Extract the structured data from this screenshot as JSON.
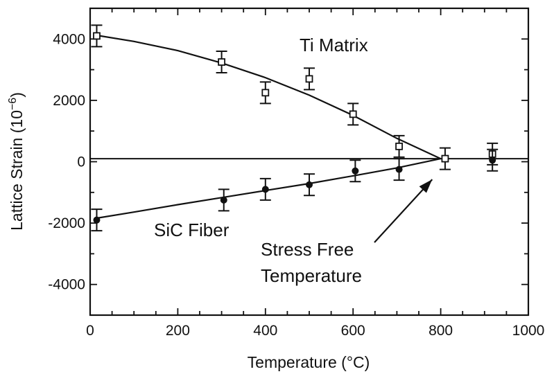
{
  "chart_data": {
    "type": "scatter",
    "title": "",
    "xlabel": "Temperature (°C)",
    "ylabel_main": "Lattice Strain (10",
    "ylabel_sup": "−6",
    "ylabel_close": ")",
    "xlim": [
      0,
      1000
    ],
    "ylim": [
      -5000,
      5000
    ],
    "xticks": [
      0,
      200,
      400,
      600,
      800,
      1000
    ],
    "yticks": [
      4000,
      2000,
      0,
      -2000,
      -4000
    ],
    "ytick_labels": [
      "4000",
      "2000",
      "0",
      "-2000",
      "-4000"
    ],
    "grid": false,
    "series": [
      {
        "name": "Ti Matrix",
        "marker": "open-square",
        "points": [
          {
            "x": 15,
            "y": 4100,
            "err": 350
          },
          {
            "x": 300,
            "y": 3250,
            "err": 350
          },
          {
            "x": 400,
            "y": 2250,
            "err": 350
          },
          {
            "x": 500,
            "y": 2700,
            "err": 350
          },
          {
            "x": 600,
            "y": 1550,
            "err": 350
          },
          {
            "x": 705,
            "y": 500,
            "err": 350
          },
          {
            "x": 810,
            "y": 100,
            "err": 350
          },
          {
            "x": 918,
            "y": 250,
            "err": 350
          }
        ],
        "fit": [
          [
            10,
            4130
          ],
          [
            100,
            3920
          ],
          [
            200,
            3620
          ],
          [
            300,
            3220
          ],
          [
            400,
            2740
          ],
          [
            500,
            2170
          ],
          [
            600,
            1510
          ],
          [
            700,
            760
          ],
          [
            800,
            100
          ]
        ]
      },
      {
        "name": "SiC Fiber",
        "marker": "filled-circle",
        "points": [
          {
            "x": 15,
            "y": -1900,
            "err": 350
          },
          {
            "x": 305,
            "y": -1250,
            "err": 350
          },
          {
            "x": 400,
            "y": -900,
            "err": 350
          },
          {
            "x": 500,
            "y": -750,
            "err": 350
          },
          {
            "x": 605,
            "y": -300,
            "err": 350
          },
          {
            "x": 705,
            "y": -250,
            "err": 350
          },
          {
            "x": 918,
            "y": 50,
            "err": 350
          }
        ],
        "fit": [
          [
            10,
            -1850
          ],
          [
            100,
            -1640
          ],
          [
            200,
            -1400
          ],
          [
            300,
            -1170
          ],
          [
            400,
            -940
          ],
          [
            500,
            -710
          ],
          [
            600,
            -460
          ],
          [
            700,
            -200
          ],
          [
            800,
            100
          ]
        ]
      }
    ],
    "reference_line": {
      "y": 100
    },
    "annotations": [
      {
        "text": "Ti Matrix"
      },
      {
        "text": "SiC Fiber"
      },
      {
        "text_line1": "Stress Free",
        "text_line2": "Temperature",
        "points_to": {
          "x": 790,
          "y": 100
        }
      }
    ]
  }
}
